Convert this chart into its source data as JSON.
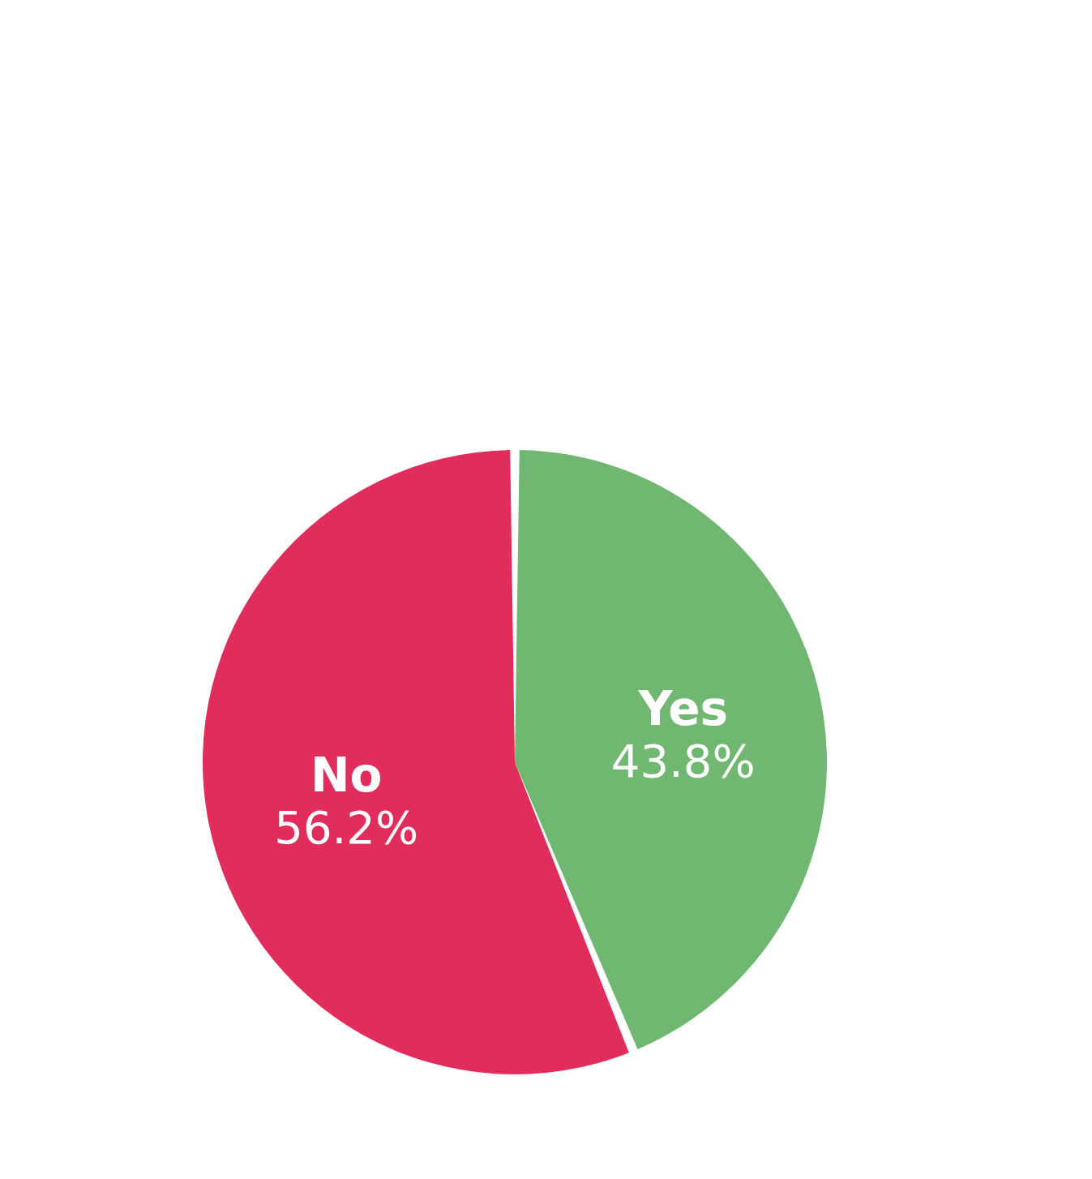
{
  "chart_data": {
    "type": "pie",
    "categories": [
      "Yes",
      "No"
    ],
    "values": [
      43.8,
      56.2
    ],
    "colors": [
      "#70b771",
      "#e02d5c"
    ],
    "value_labels": [
      "43.8%",
      "56.2%"
    ],
    "legend": false
  }
}
